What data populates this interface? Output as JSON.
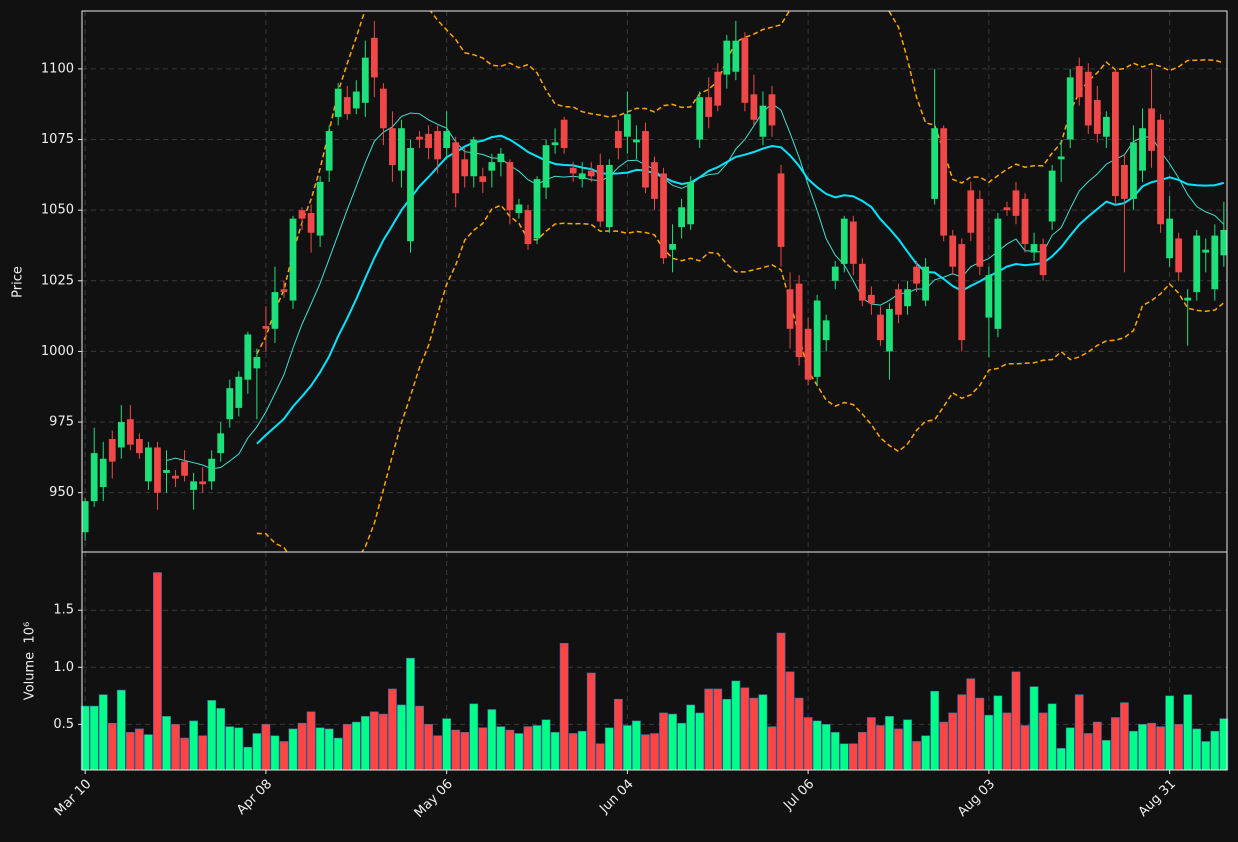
{
  "chart_data": {
    "type": "candlestick",
    "ylabel": "Price",
    "categories": [
      "Mar 10",
      null,
      null,
      null,
      null,
      null,
      null,
      null,
      null,
      null,
      null,
      null,
      null,
      null,
      null,
      null,
      null,
      null,
      null,
      null,
      "Apr 08",
      null,
      null,
      null,
      null,
      null,
      null,
      null,
      null,
      null,
      null,
      null,
      null,
      null,
      null,
      null,
      null,
      null,
      null,
      null,
      "May 06",
      null,
      null,
      null,
      null,
      null,
      null,
      null,
      null,
      null,
      null,
      null,
      null,
      null,
      null,
      null,
      null,
      null,
      null,
      null,
      "Jun 04",
      null,
      null,
      null,
      null,
      null,
      null,
      null,
      null,
      null,
      null,
      null,
      null,
      null,
      null,
      null,
      null,
      null,
      null,
      null,
      "Jul 06",
      null,
      null,
      null,
      null,
      null,
      null,
      null,
      null,
      null,
      null,
      null,
      null,
      null,
      null,
      null,
      null,
      null,
      null,
      null,
      "Aug 03",
      null,
      null,
      null,
      null,
      null,
      null,
      null,
      null,
      null,
      null,
      null,
      null,
      null,
      null,
      null,
      null,
      null,
      null,
      null,
      "Aug 31",
      null,
      null,
      null,
      null,
      null,
      null
    ],
    "open": [
      936,
      947,
      952,
      969,
      966,
      976,
      969,
      954,
      966,
      957,
      956,
      961,
      951,
      954,
      954,
      964,
      976,
      980,
      990,
      994,
      1009,
      1008,
      1022,
      1018,
      1050,
      1049,
      1041,
      1064,
      1083,
      1090,
      1086,
      1088,
      1111,
      1093,
      1079,
      1064,
      1039,
      1076,
      1077,
      1078,
      1072,
      1074,
      1068,
      1062,
      1062,
      1064,
      1067,
      1067,
      1049,
      1050,
      1040,
      1058,
      1073,
      1082,
      1065,
      1061,
      1064,
      1066,
      1044,
      1078,
      1076,
      1074,
      1078,
      1067,
      1063,
      1036,
      1044,
      1045,
      1075,
      1090,
      1099,
      1098,
      1099,
      1111,
      1091,
      1076,
      1091,
      1063,
      1022,
      1024,
      1008,
      991,
      1004,
      1025,
      1031,
      1046,
      1031,
      1020,
      1013,
      1000,
      1022,
      1016,
      1030,
      1018,
      1054,
      1079,
      1041,
      1038,
      1057,
      1054,
      1012,
      1008,
      1051,
      1057,
      1054,
      1035,
      1038,
      1046,
      1068,
      1075,
      1101,
      1099,
      1089,
      1076,
      1099,
      1066,
      1054,
      1064,
      1086,
      1082,
      1033,
      1040,
      1018,
      1021,
      1035,
      1022,
      1034
    ],
    "high": [
      948,
      973,
      968,
      972,
      981,
      981,
      971,
      968,
      968,
      965,
      958,
      965,
      957,
      959,
      965,
      975,
      990,
      993,
      1007,
      1001,
      1016,
      1030,
      1025,
      1048,
      1051,
      1052,
      1062,
      1080,
      1095,
      1094,
      1096,
      1110,
      1117,
      1095,
      1085,
      1082,
      1075,
      1078,
      1080,
      1080,
      1085,
      1076,
      1072,
      1076,
      1065,
      1070,
      1072,
      1068,
      1054,
      1052,
      1062,
      1075,
      1079,
      1083,
      1067,
      1067,
      1067,
      1070,
      1068,
      1082,
      1092,
      1080,
      1081,
      1069,
      1065,
      1045,
      1054,
      1062,
      1092,
      1097,
      1102,
      1112,
      1117,
      1113,
      1098,
      1092,
      1094,
      1066,
      1028,
      1027,
      1012,
      1020,
      1013,
      1032,
      1048,
      1048,
      1033,
      1023,
      1016,
      1017,
      1024,
      1025,
      1032,
      1033,
      1100,
      1080,
      1043,
      1040,
      1060,
      1057,
      1030,
      1049,
      1053,
      1060,
      1056,
      1042,
      1040,
      1066,
      1075,
      1100,
      1104,
      1102,
      1094,
      1085,
      1100,
      1070,
      1080,
      1086,
      1100,
      1084,
      1055,
      1042,
      1022,
      1043,
      1040,
      1045,
      1053
    ],
    "low": [
      933,
      945,
      947,
      955,
      962,
      965,
      962,
      951,
      944,
      950,
      952,
      954,
      944,
      950,
      951,
      961,
      973,
      977,
      985,
      976,
      1000,
      1003,
      1019,
      1015,
      1043,
      1035,
      1037,
      1060,
      1080,
      1082,
      1084,
      1083,
      1090,
      1073,
      1060,
      1058,
      1035,
      1072,
      1068,
      1063,
      1068,
      1051,
      1058,
      1058,
      1056,
      1058,
      1062,
      1045,
      1047,
      1036,
      1038,
      1054,
      1070,
      1070,
      1060,
      1058,
      1060,
      1044,
      1042,
      1068,
      1070,
      1068,
      1056,
      1050,
      1031,
      1028,
      1040,
      1043,
      1072,
      1079,
      1085,
      1093,
      1096,
      1085,
      1080,
      1073,
      1076,
      1030,
      1001,
      995,
      988,
      988,
      1000,
      1022,
      1028,
      1027,
      1016,
      1013,
      1002,
      990,
      1010,
      1013,
      1021,
      1016,
      1052,
      1039,
      1027,
      1000,
      1039,
      1027,
      998,
      1005,
      1048,
      1045,
      1035,
      1032,
      1025,
      1043,
      1060,
      1072,
      1087,
      1077,
      1074,
      1072,
      1052,
      1028,
      1050,
      1060,
      1065,
      1042,
      1030,
      1025,
      1002,
      1018,
      1028,
      1018,
      1030
    ],
    "close": [
      947,
      964,
      962,
      961,
      975,
      967,
      964,
      966,
      950,
      958,
      955,
      956,
      954,
      953,
      962,
      971,
      987,
      991,
      1006,
      998,
      1008,
      1021,
      1021,
      1047,
      1047,
      1042,
      1060,
      1078,
      1093,
      1084,
      1092,
      1104,
      1097,
      1079,
      1066,
      1079,
      1072,
      1075,
      1072,
      1068,
      1078,
      1056,
      1062,
      1075,
      1060,
      1067,
      1070,
      1050,
      1052,
      1038,
      1061,
      1073,
      1074,
      1072,
      1063,
      1063,
      1062,
      1046,
      1066,
      1072,
      1084,
      1075,
      1058,
      1054,
      1033,
      1038,
      1051,
      1060,
      1090,
      1083,
      1087,
      1110,
      1110,
      1088,
      1082,
      1087,
      1080,
      1037,
      1008,
      998,
      990,
      1018,
      1011,
      1030,
      1047,
      1031,
      1018,
      1017,
      1004,
      1015,
      1013,
      1022,
      1024,
      1030,
      1079,
      1041,
      1030,
      1004,
      1042,
      1030,
      1027,
      1047,
      1050,
      1048,
      1038,
      1038,
      1027,
      1064,
      1069,
      1097,
      1090,
      1080,
      1077,
      1083,
      1055,
      1054,
      1074,
      1079,
      1071,
      1045,
      1047,
      1028,
      1019,
      1041,
      1036,
      1041,
      1043
    ],
    "up_color": "#1ee07a",
    "down_color": "#f04848",
    "xlim": [
      -0.35,
      126.35
    ],
    "ylim": [
      929,
      1120.5
    ],
    "yticks": [
      950,
      975,
      1000,
      1025,
      1050,
      1075,
      1100
    ],
    "grid": true,
    "moving_averages": [
      {
        "window": 10,
        "color": "#40e0d0",
        "width": 1
      },
      {
        "window": 20,
        "color": "#00e5ff",
        "width": 2
      }
    ],
    "bollinger": {
      "window": 20,
      "num_std": 2,
      "color": "#ffa500"
    },
    "volume": {
      "ylabel": "Volume  10⁶",
      "values": [
        0.66,
        0.66,
        0.76,
        0.51,
        0.8,
        0.43,
        0.46,
        0.41,
        1.83,
        0.57,
        0.5,
        0.38,
        0.53,
        0.4,
        0.71,
        0.64,
        0.48,
        0.47,
        0.3,
        0.42,
        0.5,
        0.4,
        0.35,
        0.46,
        0.51,
        0.61,
        0.47,
        0.46,
        0.38,
        0.5,
        0.52,
        0.57,
        0.61,
        0.59,
        0.81,
        0.67,
        1.08,
        0.66,
        0.5,
        0.4,
        0.55,
        0.45,
        0.43,
        0.68,
        0.47,
        0.63,
        0.48,
        0.45,
        0.42,
        0.48,
        0.49,
        0.54,
        0.43,
        1.21,
        0.42,
        0.44,
        0.95,
        0.33,
        0.47,
        0.72,
        0.49,
        0.53,
        0.41,
        0.42,
        0.6,
        0.59,
        0.51,
        0.67,
        0.6,
        0.81,
        0.81,
        0.72,
        0.88,
        0.82,
        0.73,
        0.76,
        0.48,
        1.3,
        0.96,
        0.73,
        0.56,
        0.53,
        0.5,
        0.43,
        0.33,
        0.33,
        0.43,
        0.56,
        0.49,
        0.57,
        0.46,
        0.54,
        0.35,
        0.4,
        0.79,
        0.52,
        0.6,
        0.76,
        0.9,
        0.73,
        0.58,
        0.75,
        0.6,
        0.96,
        0.49,
        0.83,
        0.6,
        0.68,
        0.29,
        0.47,
        0.76,
        0.42,
        0.52,
        0.36,
        0.56,
        0.69,
        0.44,
        0.5,
        0.51,
        0.48,
        0.75,
        0.5,
        0.76,
        0.46,
        0.35,
        0.44,
        0.55
      ],
      "up_color": "#00ff88",
      "down_color": "#ff4444",
      "ylim": [
        0.1,
        2.01
      ],
      "yticks": [
        0.5,
        {
          "value": 1,
          "label": "1.0"
        },
        1.5
      ]
    }
  }
}
